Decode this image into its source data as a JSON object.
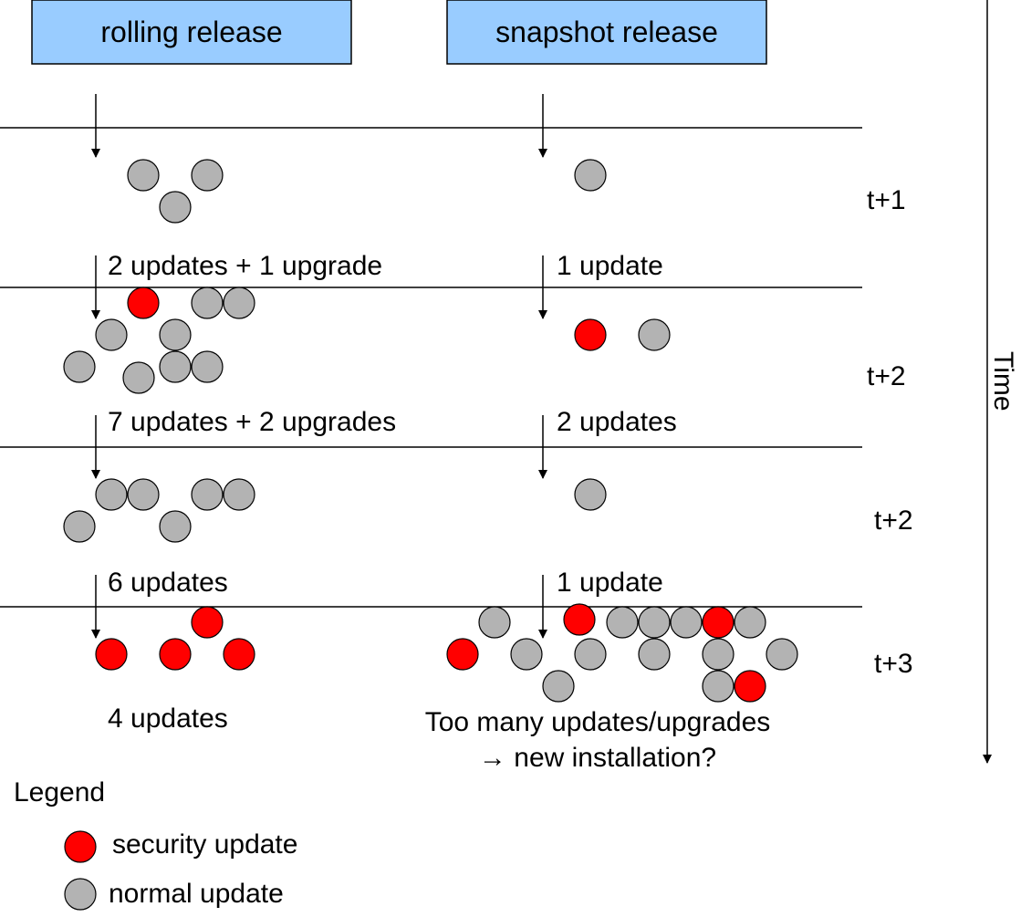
{
  "headers": {
    "rolling": "rolling release",
    "snapshot": "snapshot release"
  },
  "time_label": "Time",
  "rows": [
    {
      "time": "t+1",
      "rolling": {
        "label": "2 updates + 1 upgrade",
        "security": 0,
        "normal": 3
      },
      "snapshot": {
        "label": "1 update",
        "security": 0,
        "normal": 1
      }
    },
    {
      "time": "t+2",
      "rolling": {
        "label": "7 updates + 2 upgrades",
        "security": 1,
        "normal": 9
      },
      "snapshot": {
        "label": "2 updates",
        "security": 1,
        "normal": 1
      }
    },
    {
      "time": "t+2",
      "rolling": {
        "label": "6 updates",
        "security": 0,
        "normal": 6
      },
      "snapshot": {
        "label": "1 update",
        "security": 0,
        "normal": 1
      }
    },
    {
      "time": "t+3",
      "rolling": {
        "label": "4 updates",
        "security": 4,
        "normal": 0
      },
      "snapshot": {
        "label": "",
        "security": 4,
        "normal": 12
      }
    }
  ],
  "snapshot_note": {
    "line1": "Too many updates/upgrades",
    "line2": "→ new installation?"
  },
  "legend": {
    "title": "Legend",
    "security": "security update",
    "normal": "normal update"
  },
  "colors": {
    "header_fill": "#99ccff",
    "security": "#ff0000",
    "normal": "#b3b3b3",
    "line": "#000000"
  }
}
